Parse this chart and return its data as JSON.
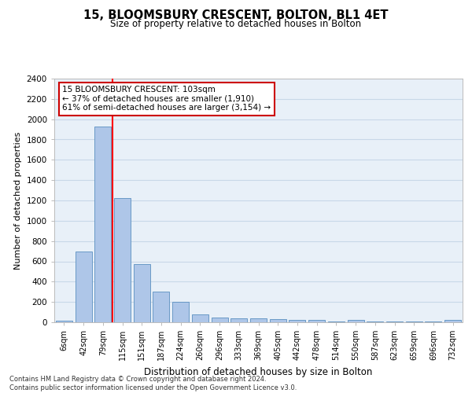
{
  "title": "15, BLOOMSBURY CRESCENT, BOLTON, BL1 4ET",
  "subtitle": "Size of property relative to detached houses in Bolton",
  "xlabel": "Distribution of detached houses by size in Bolton",
  "ylabel": "Number of detached properties",
  "footnote": "Contains HM Land Registry data © Crown copyright and database right 2024.\nContains public sector information licensed under the Open Government Licence v3.0.",
  "bin_labels": [
    "6sqm",
    "42sqm",
    "79sqm",
    "115sqm",
    "151sqm",
    "187sqm",
    "224sqm",
    "260sqm",
    "296sqm",
    "333sqm",
    "369sqm",
    "405sqm",
    "442sqm",
    "478sqm",
    "514sqm",
    "550sqm",
    "587sqm",
    "623sqm",
    "659sqm",
    "696sqm",
    "732sqm"
  ],
  "bar_values": [
    15,
    700,
    1930,
    1220,
    575,
    305,
    200,
    80,
    45,
    35,
    35,
    30,
    25,
    20,
    5,
    20,
    5,
    5,
    5,
    5,
    20
  ],
  "bar_color": "#aec6e8",
  "bar_edge_color": "#5a8fc0",
  "ylim": [
    0,
    2400
  ],
  "yticks": [
    0,
    200,
    400,
    600,
    800,
    1000,
    1200,
    1400,
    1600,
    1800,
    2000,
    2200,
    2400
  ],
  "annotation_text": "15 BLOOMSBURY CRESCENT: 103sqm\n← 37% of detached houses are smaller (1,910)\n61% of semi-detached houses are larger (3,154) →",
  "annotation_box_color": "#cc0000",
  "grid_color": "#c8d8e8",
  "bg_color": "#e8f0f8",
  "red_line_x": 2.5
}
